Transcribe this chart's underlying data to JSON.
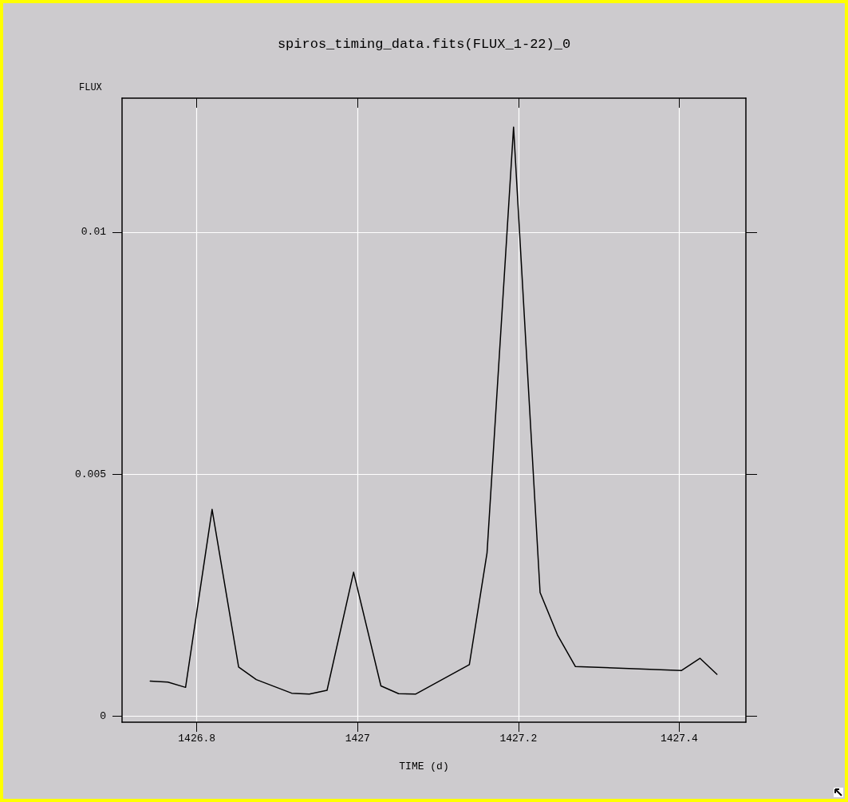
{
  "chart_data": {
    "type": "line",
    "title": "spiros_timing_data.fits(FLUX_1-22)_0",
    "xlabel": "TIME (d)",
    "ylabel": "FLUX",
    "x": [
      1426.742,
      1426.764,
      1426.786,
      1426.819,
      1426.852,
      1426.874,
      1426.918,
      1426.94,
      1426.962,
      1426.995,
      1427.029,
      1427.051,
      1427.072,
      1427.139,
      1427.161,
      1427.194,
      1427.227,
      1427.249,
      1427.271,
      1427.403,
      1427.426,
      1427.447
    ],
    "series": [
      {
        "color": "#000000",
        "values": [
          0.00072,
          0.0007,
          0.00059,
          0.00427,
          0.00101,
          0.00075,
          0.00047,
          0.00045,
          0.00053,
          0.00297,
          0.00062,
          0.00046,
          0.00045,
          0.00106,
          0.00337,
          0.01217,
          0.00255,
          0.00166,
          0.00102,
          0.00094,
          0.00119,
          0.00086
        ]
      }
    ],
    "xlim": [
      1426.707,
      1427.483
    ],
    "xticks": [
      1426.8,
      1427,
      1427.2,
      1427.4
    ],
    "ylim": [
      -0.00013,
      0.01277
    ],
    "yticks": [
      0,
      0.005,
      0.01
    ],
    "grid": true,
    "marker": "none",
    "line_style": "solid"
  }
}
